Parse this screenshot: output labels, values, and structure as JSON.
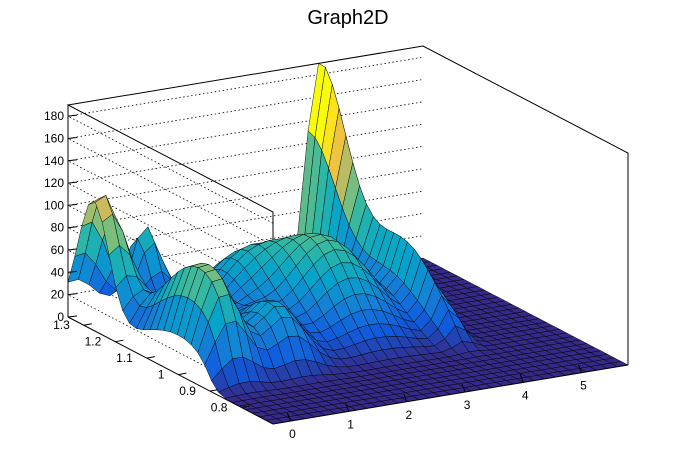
{
  "chart_data": {
    "type": "surface",
    "title": "Graph2D",
    "xlabel": "",
    "ylabel": "",
    "zlabel": "",
    "xlim": [
      -0.3,
      5.8
    ],
    "ylim": [
      0.7,
      1.35
    ],
    "zlim": [
      0,
      190
    ],
    "x_ticks": [
      "0",
      "1",
      "2",
      "3",
      "4",
      "5"
    ],
    "y_ticks": [
      "0.8",
      "0.9",
      "1",
      "1.1",
      "1.2",
      "1.3"
    ],
    "z_ticks": [
      "0",
      "20",
      "40",
      "60",
      "80",
      "100",
      "120",
      "140",
      "160",
      "180"
    ],
    "palette": [
      "#352a87",
      "#0f5cdd",
      "#1481d6",
      "#06a4ca",
      "#2eb7a4",
      "#87bf77",
      "#d1bb59",
      "#fec832",
      "#f9fb0e"
    ],
    "features": [
      {
        "description": "sharp peak",
        "x": 4.0,
        "y": 1.35,
        "z": 190
      },
      {
        "description": "ridge at low x",
        "x": -0.2,
        "y": 1.25,
        "z": 120
      },
      {
        "description": "plateau",
        "x": 0.1,
        "y": 1.0,
        "z": 100
      },
      {
        "description": "central dome",
        "x": 2.8,
        "y": 1.1,
        "z": 80
      },
      {
        "description": "flat floor",
        "x": 5.0,
        "y": 0.8,
        "z": 0
      }
    ]
  }
}
